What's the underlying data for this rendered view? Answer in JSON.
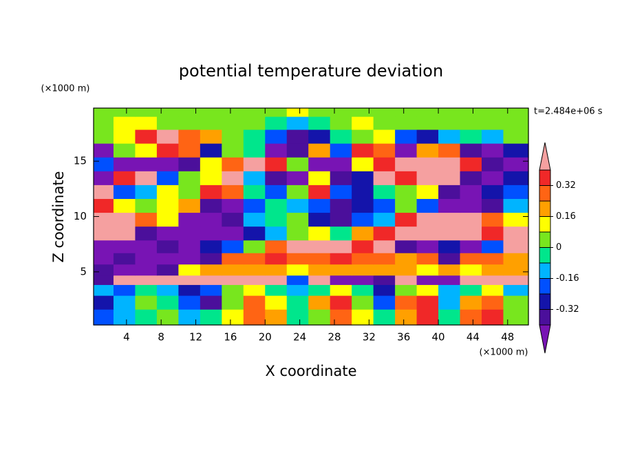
{
  "chart_data": {
    "type": "contour",
    "title": "potential temperature deviation",
    "x_label": "X coordinate",
    "y_label": "Z coordinate",
    "x_unit": "(×1000 m)",
    "y_unit": "(×1000 m)",
    "annotation": "t=2.484e+06 s",
    "xlim": [
      0.2,
      50.4
    ],
    "ylim": [
      0.2,
      19.8
    ],
    "xticks": [
      4,
      8,
      12,
      16,
      20,
      24,
      28,
      32,
      36,
      40,
      44,
      48
    ],
    "yticks": [
      5,
      10,
      15
    ],
    "x": [
      1.25,
      3.75,
      6.25,
      8.75,
      11.25,
      13.75,
      16.25,
      18.75,
      21.25,
      23.75,
      26.25,
      28.75,
      31.25,
      33.75,
      36.25,
      38.75,
      41.25,
      43.75,
      46.25,
      48.75
    ],
    "y": [
      1,
      2.25,
      3.5,
      4.2,
      5.2,
      6.2,
      7.25,
      8.5,
      9.75,
      11,
      12.25,
      13.5,
      14.75,
      16,
      17.25,
      18.5,
      19.6
    ],
    "z": [
      [
        -0.2,
        -0.12,
        -0.04,
        0.04,
        -0.12,
        -0.04,
        0.12,
        0.28,
        0.2,
        -0.04,
        0.04,
        0.28,
        0.12,
        -0.04,
        0.2,
        0.36,
        -0.04,
        0.28,
        0.36,
        0.04
      ],
      [
        -0.28,
        -0.12,
        0.04,
        -0.04,
        -0.2,
        -0.36,
        0.04,
        0.28,
        0.12,
        -0.04,
        0.2,
        0.36,
        0.04,
        -0.2,
        0.28,
        0.36,
        -0.12,
        0.2,
        0.28,
        0.04
      ],
      [
        -0.12,
        -0.2,
        -0.04,
        -0.12,
        -0.28,
        -0.2,
        0.04,
        0.12,
        -0.04,
        -0.12,
        -0.04,
        0.12,
        -0.04,
        -0.28,
        0.04,
        0.12,
        -0.12,
        -0.04,
        0.12,
        -0.12
      ],
      [
        -0.36,
        0.45,
        0.45,
        0.45,
        0.45,
        0.45,
        0.45,
        0.45,
        0.45,
        -0.2,
        0.45,
        -0.45,
        -0.45,
        -0.36,
        0.45,
        -0.45,
        -0.45,
        0.45,
        0.45,
        0.45
      ],
      [
        -0.36,
        -0.45,
        -0.45,
        -0.36,
        0.12,
        0.2,
        0.2,
        0.2,
        0.2,
        0.12,
        0.2,
        0.2,
        0.2,
        0.2,
        0.2,
        0.12,
        0.2,
        0.12,
        0.2,
        0.2
      ],
      [
        -0.45,
        -0.36,
        -0.45,
        -0.45,
        -0.45,
        -0.36,
        0.28,
        0.28,
        0.36,
        0.28,
        0.28,
        0.36,
        0.28,
        0.28,
        0.2,
        0.28,
        -0.36,
        0.28,
        0.28,
        0.2
      ],
      [
        -0.45,
        -0.45,
        -0.45,
        -0.36,
        -0.45,
        -0.28,
        -0.2,
        0.04,
        0.28,
        0.45,
        0.45,
        0.45,
        0.36,
        0.45,
        -0.36,
        -0.45,
        -0.28,
        -0.45,
        -0.2,
        0.45
      ],
      [
        0.45,
        0.45,
        -0.36,
        -0.45,
        -0.45,
        -0.45,
        -0.45,
        -0.28,
        -0.12,
        0.04,
        0.12,
        -0.04,
        0.2,
        0.36,
        0.45,
        0.45,
        0.45,
        0.45,
        0.36,
        0.45
      ],
      [
        0.45,
        0.45,
        0.28,
        0.12,
        -0.45,
        -0.45,
        -0.36,
        -0.12,
        -0.04,
        0.04,
        -0.28,
        -0.36,
        -0.2,
        -0.12,
        0.36,
        0.45,
        0.45,
        0.45,
        0.28,
        0.12
      ],
      [
        0.36,
        0.12,
        0.04,
        0.12,
        0.2,
        -0.36,
        -0.45,
        -0.2,
        -0.04,
        -0.12,
        -0.2,
        -0.36,
        -0.28,
        -0.2,
        0.04,
        -0.2,
        -0.45,
        -0.45,
        -0.36,
        -0.12
      ],
      [
        0.45,
        -0.2,
        -0.12,
        0.12,
        0.04,
        0.36,
        0.28,
        -0.04,
        -0.2,
        0.04,
        0.36,
        -0.2,
        -0.28,
        -0.04,
        0.04,
        0.12,
        -0.36,
        -0.45,
        -0.28,
        -0.2
      ],
      [
        -0.45,
        0.36,
        0.45,
        -0.2,
        0.04,
        0.12,
        0.45,
        -0.12,
        -0.36,
        -0.45,
        0.12,
        -0.36,
        -0.28,
        0.45,
        0.36,
        0.45,
        0.45,
        -0.36,
        -0.45,
        -0.28
      ],
      [
        -0.2,
        -0.45,
        -0.45,
        -0.45,
        -0.36,
        0.12,
        0.28,
        0.45,
        0.36,
        0.04,
        -0.45,
        -0.45,
        0.12,
        0.36,
        0.45,
        0.45,
        0.45,
        0.36,
        -0.36,
        -0.45
      ],
      [
        -0.45,
        0.04,
        0.12,
        0.36,
        0.28,
        -0.28,
        0.04,
        -0.04,
        -0.45,
        -0.36,
        0.2,
        -0.2,
        0.36,
        0.28,
        -0.45,
        0.2,
        0.28,
        -0.36,
        -0.45,
        -0.28
      ],
      [
        0.04,
        0.12,
        0.36,
        0.45,
        0.28,
        0.2,
        0.04,
        -0.04,
        -0.2,
        -0.36,
        -0.28,
        -0.04,
        0.04,
        0.12,
        -0.2,
        -0.28,
        -0.12,
        -0.04,
        -0.12,
        0.04
      ],
      [
        0.04,
        0.12,
        0.12,
        0.04,
        0.04,
        0.04,
        0.04,
        0.04,
        -0.04,
        -0.12,
        -0.04,
        0.04,
        0.12,
        0.04,
        0.04,
        0.04,
        0.04,
        0.04,
        0.04,
        0.04
      ],
      [
        0.04,
        0.04,
        0.04,
        0.04,
        0.04,
        0.04,
        0.04,
        0.04,
        0.04,
        0.12,
        0.04,
        0.04,
        0.04,
        0.04,
        0.04,
        0.04,
        0.04,
        0.04,
        0.04,
        0.04
      ]
    ],
    "colorbar": {
      "levels": [
        -0.4,
        -0.32,
        -0.24,
        -0.16,
        -0.08,
        0,
        0.08,
        0.16,
        0.24,
        0.32,
        0.4
      ],
      "colors": [
        "#7814b4",
        "#4b0f9b",
        "#1414aa",
        "#0050ff",
        "#00b4ff",
        "#00e68c",
        "#78e61e",
        "#ffff00",
        "#ffa000",
        "#ff6414",
        "#f02828",
        "#f5a0a0"
      ],
      "ticks": [
        -0.32,
        -0.16,
        0,
        0.16,
        0.32
      ]
    }
  }
}
